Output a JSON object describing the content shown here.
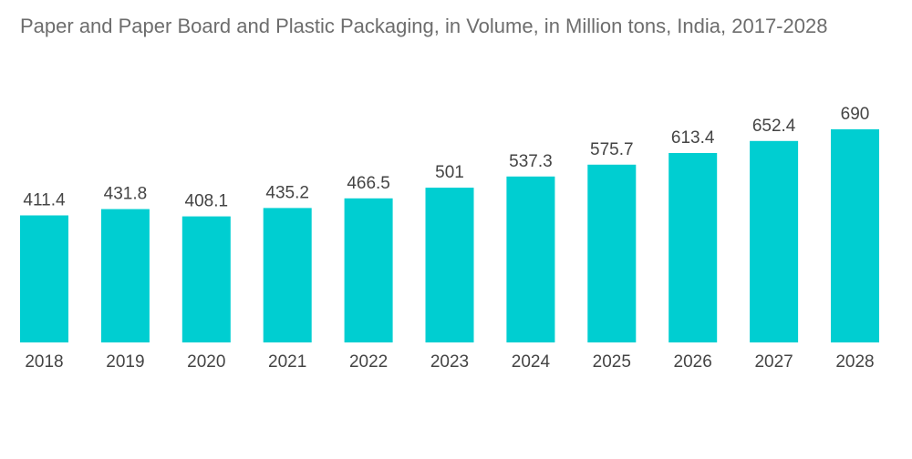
{
  "chart_data": {
    "type": "bar",
    "title": "Paper and Paper Board and Plastic Packaging, in Volume, in Million tons, India, 2017-2028",
    "categories": [
      "2018",
      "2019",
      "2020",
      "2021",
      "2022",
      "2023",
      "2024",
      "2025",
      "2026",
      "2027",
      "2028"
    ],
    "values": [
      411.4,
      431.8,
      408.1,
      435.2,
      466.5,
      501,
      537.3,
      575.7,
      613.4,
      652.4,
      690
    ],
    "value_labels": [
      "411.4",
      "431.8",
      "408.1",
      "435.2",
      "466.5",
      "501",
      "537.3",
      "575.7",
      "613.4",
      "652.4",
      "690"
    ],
    "xlabel": "",
    "ylabel": "",
    "ylim": [
      0,
      690
    ],
    "grid": false,
    "legend": "none",
    "bar_color": "#00ced1"
  }
}
